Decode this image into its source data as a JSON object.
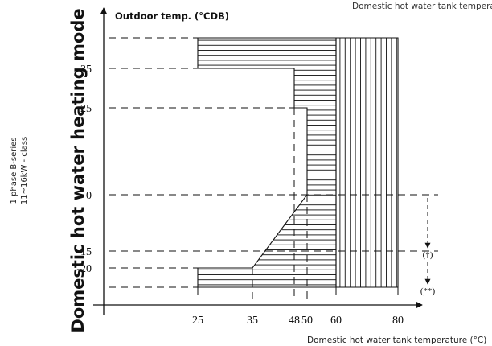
{
  "header": {
    "top_caption": "Domestic hot water tank temperature (°C)"
  },
  "side": {
    "model_line1": "1 phase B-series",
    "model_line2": "11~16kW - class",
    "mode_title": "Domestic hot water heating mode"
  },
  "chart_data": {
    "type": "area",
    "ylabel": "Outdoor temp. (°CDB)",
    "xlabel": "Domestic hot water tank temperature (°C)",
    "x_ticks": [
      25,
      35,
      48,
      50,
      60,
      80
    ],
    "y_ticks": [
      35,
      25,
      0,
      -15,
      -20
    ],
    "x_range": [
      25,
      80
    ],
    "y_range": [
      -23,
      43
    ],
    "regions": [
      {
        "fill": "horizontal-hatch",
        "polygon": [
          [
            25,
            43
          ],
          [
            60,
            43
          ],
          [
            60,
            -23
          ],
          [
            25,
            -23
          ],
          [
            25,
            -20
          ],
          [
            35,
            -20
          ],
          [
            50,
            0
          ],
          [
            50,
            25
          ],
          [
            48,
            25
          ],
          [
            48,
            35
          ],
          [
            25,
            35
          ]
        ]
      },
      {
        "fill": "vertical-hatch",
        "polygon": [
          [
            60,
            43
          ],
          [
            80,
            43
          ],
          [
            80,
            -23
          ],
          [
            60,
            -23
          ]
        ]
      }
    ],
    "annotations": [
      {
        "label": "(*)",
        "y_from": 0,
        "y_to": -15
      },
      {
        "label": "(**)",
        "y_from": -15,
        "y_to": -23
      }
    ]
  }
}
